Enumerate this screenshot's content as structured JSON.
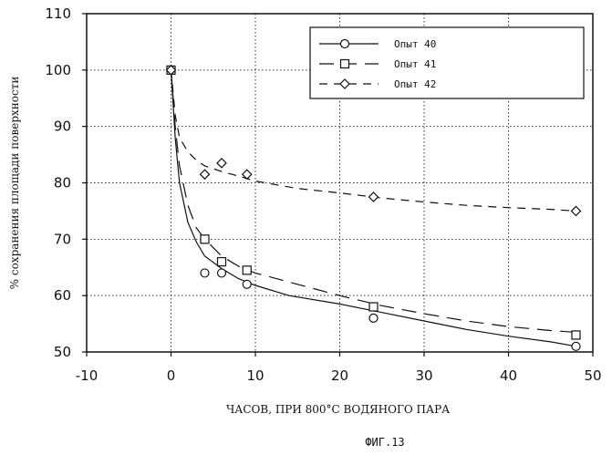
{
  "chart_data": {
    "type": "scatter",
    "xlabel": "ЧАСОВ, ПРИ 800°С ВОДЯНОГО ПАРА",
    "ylabel": "% сохранения площади поверхности",
    "caption": "ФИГ.13",
    "xlim": [
      -10,
      50
    ],
    "ylim": [
      50,
      110
    ],
    "xticks": [
      -10,
      0,
      10,
      20,
      30,
      40,
      50
    ],
    "yticks": [
      50,
      60,
      70,
      80,
      90,
      100,
      110
    ],
    "grid": "dotted",
    "legend_position": "top-right",
    "series": [
      {
        "name": "Опыт 40",
        "marker": "circle",
        "line": "solid",
        "points": [
          [
            0,
            100
          ],
          [
            4,
            64
          ],
          [
            6,
            64
          ],
          [
            9,
            62
          ],
          [
            24,
            56
          ],
          [
            48,
            51
          ]
        ],
        "curve": [
          [
            0,
            100
          ],
          [
            0.5,
            88
          ],
          [
            1,
            80
          ],
          [
            2,
            73
          ],
          [
            3,
            69.5
          ],
          [
            4,
            67
          ],
          [
            6,
            64.8
          ],
          [
            8,
            63
          ],
          [
            10,
            61.8
          ],
          [
            14,
            60
          ],
          [
            20,
            58.5
          ],
          [
            25,
            57
          ],
          [
            30,
            55.5
          ],
          [
            35,
            54
          ],
          [
            40,
            52.8
          ],
          [
            45,
            51.8
          ],
          [
            48,
            51
          ]
        ]
      },
      {
        "name": "Опыт 41",
        "marker": "square",
        "line": "dashed",
        "points": [
          [
            0,
            100
          ],
          [
            4,
            70
          ],
          [
            6,
            66
          ],
          [
            9,
            64.5
          ],
          [
            24,
            58
          ],
          [
            48,
            53
          ]
        ],
        "curve": [
          [
            0,
            100
          ],
          [
            0.5,
            90
          ],
          [
            1,
            83
          ],
          [
            2,
            76
          ],
          [
            3,
            72
          ],
          [
            4,
            70
          ],
          [
            6,
            67
          ],
          [
            8,
            65.2
          ],
          [
            10,
            64
          ],
          [
            15,
            62
          ],
          [
            20,
            60
          ],
          [
            25,
            58.2
          ],
          [
            30,
            56.8
          ],
          [
            35,
            55.5
          ],
          [
            40,
            54.5
          ],
          [
            45,
            53.8
          ],
          [
            48,
            53.5
          ]
        ]
      },
      {
        "name": "Опыт 42",
        "marker": "diamond",
        "line": "dashed",
        "points": [
          [
            0,
            100
          ],
          [
            4,
            81.5
          ],
          [
            6,
            83.5
          ],
          [
            9,
            81.5
          ],
          [
            24,
            77.5
          ],
          [
            48,
            75
          ]
        ],
        "curve": [
          [
            0,
            100
          ],
          [
            0.5,
            92
          ],
          [
            1,
            88
          ],
          [
            2,
            85.5
          ],
          [
            3,
            84
          ],
          [
            4,
            83
          ],
          [
            6,
            82
          ],
          [
            8,
            81.2
          ],
          [
            10,
            80.3
          ],
          [
            15,
            79
          ],
          [
            20,
            78.2
          ],
          [
            25,
            77.3
          ],
          [
            30,
            76.6
          ],
          [
            35,
            76
          ],
          [
            40,
            75.6
          ],
          [
            45,
            75.3
          ],
          [
            48,
            75
          ]
        ]
      }
    ]
  }
}
